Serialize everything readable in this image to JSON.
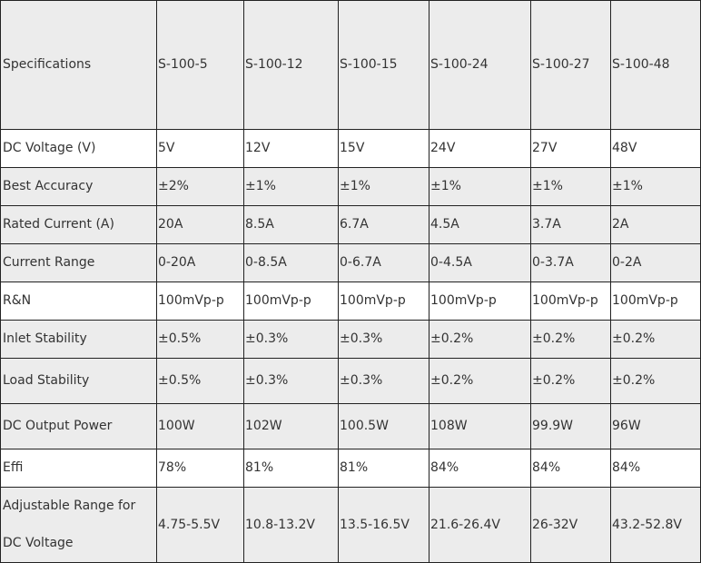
{
  "table": {
    "header": [
      "Specifications",
      "S-100-5",
      "S-100-12",
      "S-100-15",
      "S-100-24",
      "S-100-27",
      "S-100-48"
    ],
    "rows": [
      [
        "DC Voltage (V)",
        "5V",
        "12V",
        "15V",
        "24V",
        "27V",
        "48V"
      ],
      [
        "Best Accuracy",
        "±2%",
        "±1%",
        "±1%",
        "±1%",
        "±1%",
        "±1%"
      ],
      [
        "Rated Current (A)",
        "20A",
        "8.5A",
        "6.7A",
        "4.5A",
        "3.7A",
        "2A"
      ],
      [
        "Current Range",
        "0-20A",
        "0-8.5A",
        "0-6.7A",
        "0-4.5A",
        "0-3.7A",
        "0-2A"
      ],
      [
        "R&N",
        "100mVp-p",
        "100mVp-p",
        "100mVp-p",
        "100mVp-p",
        "100mVp-p",
        "100mVp-p"
      ],
      [
        "Inlet Stability",
        "±0.5%",
        "±0.3%",
        "±0.3%",
        "±0.2%",
        "±0.2%",
        "±0.2%"
      ],
      [
        "Load  Stability",
        "±0.5%",
        "±0.3%",
        "±0.3%",
        "±0.2%",
        "±0.2%",
        "±0.2%"
      ],
      [
        "DC  Output  Power",
        "100W",
        "102W",
        "100.5W",
        "108W",
        "99.9W",
        "96W"
      ],
      [
        "Effi",
        "78%",
        "81%",
        "81%",
        "84%",
        "84%",
        "84%"
      ],
      [
        "Adjustable Range for DC Voltage",
        "4.75-5.5V",
        "10.8-13.2V",
        "13.5-16.5V",
        "21.6-26.4V",
        "26-32V",
        "43.2-52.8V"
      ]
    ]
  }
}
